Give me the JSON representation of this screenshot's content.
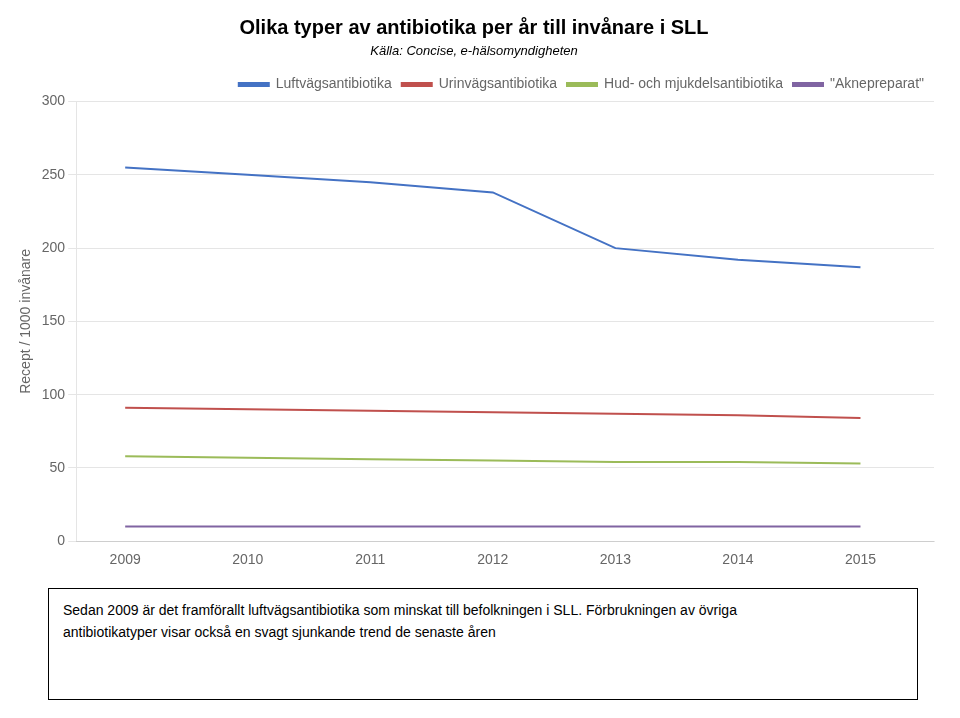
{
  "chart_data": {
    "type": "line",
    "title": "Olika typer av antibiotika per år till invånare i SLL",
    "subtitle": "Källa: Concise, e-hälsomyndigheten",
    "y_label": "Recept / 1000 invånare",
    "x": [
      2009,
      2010,
      2011,
      2012,
      2013,
      2014,
      2015
    ],
    "series": [
      {
        "name": "Luftvägsantibiotika",
        "color": "#4472C4",
        "values": [
          255,
          250,
          245,
          238,
          200,
          192,
          187
        ]
      },
      {
        "name": "Urinvägsantibiotika",
        "color": "#C0504D",
        "values": [
          91,
          90,
          89,
          88,
          87,
          86,
          84
        ]
      },
      {
        "name": "Hud- och mjukdelsantibiotika",
        "color": "#9BBB59",
        "values": [
          58,
          57,
          56,
          55,
          54,
          54,
          53
        ]
      },
      {
        "name": "\"Aknepreparat\"",
        "color": "#8064A2",
        "values": [
          10,
          10,
          10,
          10,
          10,
          10,
          10
        ]
      }
    ],
    "xlim": [
      2008.6,
      2015.6
    ],
    "xticks": [
      2009,
      2010,
      2011,
      2012,
      2013,
      2014,
      2015
    ],
    "ylim": [
      0,
      300
    ],
    "yticks": [
      0,
      50,
      100,
      150,
      200,
      250,
      300
    ],
    "grid": true,
    "legend": "upper right",
    "annotations": [
      "Sedan 2009 är det framförallt luftvägsantibiotika som minskat till befolkningen i SLL. Förbrukningen av övriga",
      "antibiotikatyper visar också en svagt sjunkande trend de senaste åren"
    ]
  }
}
